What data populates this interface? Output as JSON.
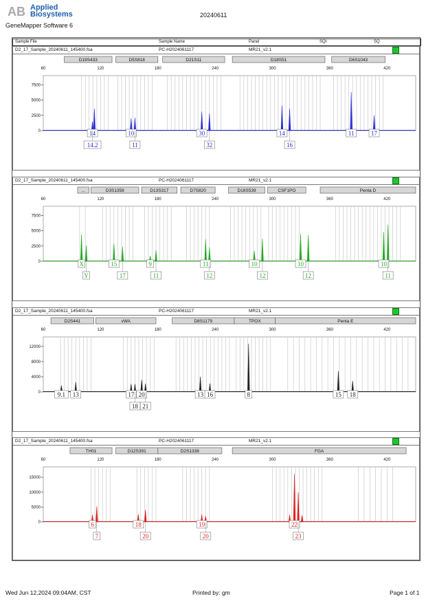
{
  "header": {
    "logo_letters": "AB",
    "brand_line1": "Applied",
    "brand_line2": "Biosystems",
    "software": "GeneMapper Software 6",
    "date": "20240611"
  },
  "columns": [
    "Sample File",
    "Sample Name",
    "Panel",
    "SQI",
    "SQ"
  ],
  "footer": {
    "printed_on": "Wed Jun 12,2024 09:04AM, CST",
    "printed_by": "Printed by: gm",
    "page": "Page 1 of 1"
  },
  "chart_data": [
    {
      "type": "line",
      "color": "#2a2ad6",
      "sample_file": "D2_17_Sample_20240611_145400.fsa",
      "sample_name": "PC-H2024061117",
      "panel_name": "MR21_v2.1",
      "xlim": [
        60,
        450
      ],
      "x_ticks": [
        60,
        120,
        180,
        240,
        300,
        360,
        420
      ],
      "ylim": [
        0,
        9000
      ],
      "y_ticks": [
        0,
        2500,
        5000,
        7500
      ],
      "y_tick_labels": [
        "0",
        "2500",
        "5000",
        "7500"
      ],
      "loci": [
        {
          "name": "D19S433",
          "start": 82,
          "end": 132,
          "bins": [
            100,
            104,
            108,
            112,
            116,
            120,
            124,
            128
          ]
        },
        {
          "name": "D5S818",
          "start": 136,
          "end": 180,
          "bins": [
            138,
            142,
            146,
            150,
            154,
            158,
            162,
            166,
            170,
            174
          ]
        },
        {
          "name": "D21S11",
          "start": 185,
          "end": 250,
          "bins": [
            190,
            194,
            198,
            202,
            206,
            210,
            214,
            218,
            222,
            226,
            230,
            234,
            238,
            242,
            246
          ]
        },
        {
          "name": "D18S51",
          "start": 258,
          "end": 355,
          "bins": [
            266,
            270,
            274,
            278,
            282,
            286,
            290,
            294,
            298,
            302,
            306,
            310,
            314,
            318,
            322,
            326,
            330,
            334,
            338,
            342,
            346,
            350
          ]
        },
        {
          "name": "D6S1043",
          "start": 362,
          "end": 418,
          "bins": [
            364,
            368,
            372,
            376,
            380,
            384,
            388,
            392,
            396,
            400,
            404,
            408,
            412,
            416
          ]
        }
      ],
      "peaks": [
        {
          "x": 111.5,
          "h": 1500
        },
        {
          "x": 113.5,
          "h": 3600
        },
        {
          "x": 152.0,
          "h": 2000
        },
        {
          "x": 156.0,
          "h": 2100
        },
        {
          "x": 226.0,
          "h": 3100
        },
        {
          "x": 234.0,
          "h": 2800
        },
        {
          "x": 310.0,
          "h": 4100
        },
        {
          "x": 318.0,
          "h": 3600
        },
        {
          "x": 382.5,
          "h": 6300
        },
        {
          "x": 406.5,
          "h": 2500
        }
      ],
      "allele_labels": [
        {
          "x": 111.5,
          "row": 1,
          "text": "14"
        },
        {
          "x": 111.5,
          "row": 2,
          "text": "14.2"
        },
        {
          "x": 152.0,
          "row": 1,
          "text": "10"
        },
        {
          "x": 156.0,
          "row": 2,
          "text": "11"
        },
        {
          "x": 226.0,
          "row": 1,
          "text": "30"
        },
        {
          "x": 234.0,
          "row": 2,
          "text": "32"
        },
        {
          "x": 310.0,
          "row": 1,
          "text": "14"
        },
        {
          "x": 318.0,
          "row": 2,
          "text": "16"
        },
        {
          "x": 382.5,
          "row": 1,
          "text": "11"
        },
        {
          "x": 406.5,
          "row": 1,
          "text": "17"
        }
      ]
    },
    {
      "type": "line",
      "color": "#22aa22",
      "sample_file": "D2_17_Sample_20240611_145400.fsa",
      "sample_name": "PC-H2024061117",
      "panel_name": "MR21_v2.1",
      "xlim": [
        60,
        450
      ],
      "x_ticks": [
        60,
        120,
        180,
        240,
        300,
        360,
        420
      ],
      "ylim": [
        0,
        9000
      ],
      "y_ticks": [
        0,
        2500,
        5000,
        7500
      ],
      "y_tick_labels": [
        "0",
        "2500",
        "5000",
        "7500"
      ],
      "loci": [
        {
          "name": "...",
          "start": 96,
          "end": 108,
          "bins": [
            98,
            104
          ]
        },
        {
          "name": "D3S1358",
          "start": 110,
          "end": 160,
          "bins": [
            122,
            126,
            130,
            134,
            138,
            142,
            146,
            150,
            154
          ]
        },
        {
          "name": "D13S317",
          "start": 163,
          "end": 200,
          "bins": [
            166,
            170,
            174,
            178,
            182,
            186,
            190,
            194
          ]
        },
        {
          "name": "D7S820",
          "start": 204,
          "end": 240,
          "bins": [
            210,
            214,
            218,
            222,
            226,
            230,
            234
          ]
        },
        {
          "name": "D16S539",
          "start": 254,
          "end": 292,
          "bins": [
            256,
            260,
            264,
            268,
            272,
            276,
            280,
            284,
            288
          ]
        },
        {
          "name": "CSF1PO",
          "start": 295,
          "end": 335,
          "bins": [
            296,
            300,
            304,
            308,
            312,
            316,
            320,
            324,
            328
          ]
        },
        {
          "name": "Penta D",
          "start": 350,
          "end": 450,
          "bins": [
            366,
            370,
            374,
            378,
            382,
            386,
            390,
            394,
            398,
            402,
            406,
            410,
            414,
            418,
            422,
            426,
            430,
            434
          ]
        }
      ],
      "peaks": [
        {
          "x": 100.0,
          "h": 4400
        },
        {
          "x": 105.0,
          "h": 2600
        },
        {
          "x": 134.0,
          "h": 2900
        },
        {
          "x": 143.0,
          "h": 2400
        },
        {
          "x": 172.0,
          "h": 900
        },
        {
          "x": 178.0,
          "h": 1800
        },
        {
          "x": 230.0,
          "h": 3600
        },
        {
          "x": 234.0,
          "h": 2300
        },
        {
          "x": 281.0,
          "h": 1700
        },
        {
          "x": 289.5,
          "h": 3700
        },
        {
          "x": 329.5,
          "h": 4500
        },
        {
          "x": 337.5,
          "h": 4300
        },
        {
          "x": 416.5,
          "h": 4800
        },
        {
          "x": 421.0,
          "h": 6000
        }
      ],
      "allele_labels": [
        {
          "x": 100.0,
          "row": 1,
          "text": "X"
        },
        {
          "x": 105.0,
          "row": 2,
          "text": "Y"
        },
        {
          "x": 134.0,
          "row": 1,
          "text": "15"
        },
        {
          "x": 143.0,
          "row": 2,
          "text": "17"
        },
        {
          "x": 172.0,
          "row": 1,
          "text": "9"
        },
        {
          "x": 178.0,
          "row": 2,
          "text": "11"
        },
        {
          "x": 230.0,
          "row": 1,
          "text": "11"
        },
        {
          "x": 234.0,
          "row": 2,
          "text": "12"
        },
        {
          "x": 281.0,
          "row": 1,
          "text": "10"
        },
        {
          "x": 289.5,
          "row": 2,
          "text": "12"
        },
        {
          "x": 329.5,
          "row": 1,
          "text": "10"
        },
        {
          "x": 337.5,
          "row": 2,
          "text": "12"
        },
        {
          "x": 416.5,
          "row": 1,
          "text": "10"
        },
        {
          "x": 421.0,
          "row": 2,
          "text": "11"
        }
      ]
    },
    {
      "type": "line",
      "color": "#222222",
      "sample_file": "D2_17_Sample_20240611_145400.fsa",
      "sample_name": "PC-H2024061117",
      "panel_name": "MR21_v2.1",
      "xlim": [
        60,
        450
      ],
      "x_ticks": [
        60,
        120,
        180,
        240,
        300,
        360,
        420
      ],
      "ylim": [
        0,
        14500
      ],
      "y_ticks": [
        0,
        4000,
        8000,
        12000
      ],
      "y_tick_labels": [
        "0",
        "4000",
        "8000",
        "12000"
      ],
      "loci": [
        {
          "name": "D2S441",
          "start": 68,
          "end": 113,
          "bins": [
            78,
            82,
            86,
            90,
            94,
            98,
            102,
            106,
            110
          ]
        },
        {
          "name": "vWA",
          "start": 115,
          "end": 178,
          "bins": [
            144,
            148,
            152,
            156,
            160,
            164,
            168,
            172,
            176
          ]
        },
        {
          "name": "D8S1179",
          "start": 195,
          "end": 260,
          "bins": [
            199,
            203,
            207,
            211,
            215,
            219,
            223,
            227,
            231,
            235,
            239,
            243,
            247,
            251,
            255
          ]
        },
        {
          "name": "TPOX",
          "start": 260,
          "end": 303,
          "bins": [
            262,
            266,
            270,
            274,
            278,
            282,
            286,
            290,
            294,
            298
          ]
        },
        {
          "name": "Penta E",
          "start": 303,
          "end": 450,
          "bins": [
            316,
            322,
            328,
            334,
            340,
            346,
            352,
            358,
            364,
            370,
            376,
            382,
            388,
            394,
            400,
            406,
            412,
            418,
            424,
            430,
            436,
            442
          ]
        }
      ],
      "peaks": [
        {
          "x": 79.0,
          "h": 1700
        },
        {
          "x": 94.0,
          "h": 2600
        },
        {
          "x": 152.0,
          "h": 2100
        },
        {
          "x": 156.0,
          "h": 2100
        },
        {
          "x": 163.0,
          "h": 3200
        },
        {
          "x": 167.0,
          "h": 2200
        },
        {
          "x": 224.5,
          "h": 4000
        },
        {
          "x": 234.5,
          "h": 2200
        },
        {
          "x": 275.0,
          "h": 12700
        },
        {
          "x": 369.0,
          "h": 5500
        },
        {
          "x": 384.0,
          "h": 2900
        }
      ],
      "allele_labels": [
        {
          "x": 79.0,
          "row": 1,
          "text": "9.1"
        },
        {
          "x": 94.0,
          "row": 1,
          "text": "13"
        },
        {
          "x": 152.0,
          "row": 1,
          "text": "17"
        },
        {
          "x": 156.0,
          "row": 2,
          "text": "18"
        },
        {
          "x": 163.0,
          "row": 1,
          "text": "20"
        },
        {
          "x": 167.0,
          "row": 2,
          "text": "21"
        },
        {
          "x": 224.5,
          "row": 1,
          "text": "13"
        },
        {
          "x": 234.5,
          "row": 1,
          "text": "16"
        },
        {
          "x": 275.0,
          "row": 1,
          "text": "8"
        },
        {
          "x": 369.0,
          "row": 1,
          "text": "15"
        },
        {
          "x": 384.0,
          "row": 1,
          "text": "18"
        }
      ]
    },
    {
      "type": "line",
      "color": "#e02020",
      "sample_file": "D2_17_Sample_20240611_145400.fsa",
      "sample_name": "PC-H2024061117",
      "panel_name": "MR21_v2.1",
      "xlim": [
        60,
        450
      ],
      "x_ticks": [
        60,
        120,
        180,
        240,
        300,
        360,
        420
      ],
      "ylim": [
        0,
        18500
      ],
      "y_ticks": [
        0,
        5000,
        10000,
        15000
      ],
      "y_tick_labels": [
        "0",
        "5000",
        "10000",
        "15000"
      ],
      "loci": [
        {
          "name": "TH01",
          "start": 88,
          "end": 132,
          "bins": [
            110,
            114,
            118,
            122,
            126,
            130
          ]
        },
        {
          "name": "D12S391",
          "start": 136,
          "end": 180,
          "bins": [
            158,
            162,
            166,
            170,
            174,
            178
          ]
        },
        {
          "name": "D2S1338",
          "start": 180,
          "end": 247,
          "bins": [
            206,
            210,
            214,
            218,
            222,
            226,
            230,
            234
          ]
        },
        {
          "name": "FGA",
          "start": 258,
          "end": 440,
          "bins": [
            300,
            304,
            308,
            312,
            316,
            320,
            324,
            328,
            332,
            336,
            340,
            344,
            348,
            352,
            390,
            396,
            402,
            408,
            414,
            420,
            426
          ]
        }
      ],
      "peaks": [
        {
          "x": 111.5,
          "h": 2400
        },
        {
          "x": 116.0,
          "h": 5200
        },
        {
          "x": 159.5,
          "h": 2600
        },
        {
          "x": 167.0,
          "h": 4100
        },
        {
          "x": 226.0,
          "h": 2500
        },
        {
          "x": 230.0,
          "h": 2000
        },
        {
          "x": 318.0,
          "h": 2400
        },
        {
          "x": 323.0,
          "h": 16200
        },
        {
          "x": 327.0,
          "h": 10000
        },
        {
          "x": 331.0,
          "h": 2200
        }
      ],
      "allele_labels": [
        {
          "x": 111.5,
          "row": 1,
          "text": "6"
        },
        {
          "x": 116.0,
          "row": 2,
          "text": "7"
        },
        {
          "x": 159.5,
          "row": 1,
          "text": "18"
        },
        {
          "x": 167.0,
          "row": 2,
          "text": "20"
        },
        {
          "x": 226.0,
          "row": 1,
          "text": "19"
        },
        {
          "x": 230.0,
          "row": 2,
          "text": "20"
        },
        {
          "x": 323.0,
          "row": 1,
          "text": "22"
        },
        {
          "x": 327.0,
          "row": 2,
          "text": "23"
        }
      ]
    }
  ]
}
